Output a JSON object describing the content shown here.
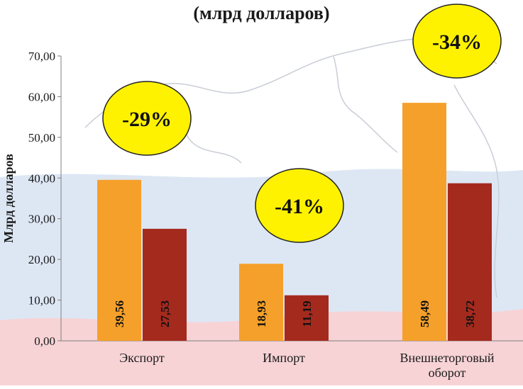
{
  "title": "(млрд долларов)",
  "colors": {
    "period_a": "#f5a02a",
    "period_b": "#a52a1e",
    "bubble_fill": "#fff200",
    "bubble_stroke": "#222222",
    "flag_white": "#ffffff",
    "flag_blue": "#dde7f4",
    "flag_red": "#f7d3d6",
    "map_line": "#c9cdd6"
  },
  "chart_data": {
    "type": "bar",
    "ylabel": "Млрд долларов",
    "ylim": [
      0,
      70
    ],
    "yticks": [
      "0,00",
      "10,00",
      "20,00",
      "30,00",
      "40,00",
      "50,00",
      "60,00",
      "70,00"
    ],
    "grid": false,
    "legend": "none",
    "categories": [
      [
        "Экспорт"
      ],
      [
        "Импорт"
      ],
      [
        "Внешнеторговый",
        "оборот"
      ]
    ],
    "series": [
      {
        "values": [
          39.56,
          18.93,
          58.49
        ],
        "labels": [
          "39,56",
          "18,93",
          "58,49"
        ]
      },
      {
        "values": [
          27.53,
          11.19,
          38.72
        ],
        "labels": [
          "27,53",
          "11,19",
          "38,72"
        ]
      }
    ],
    "annotations": [
      "-29%",
      "-41%",
      "-34%"
    ]
  }
}
